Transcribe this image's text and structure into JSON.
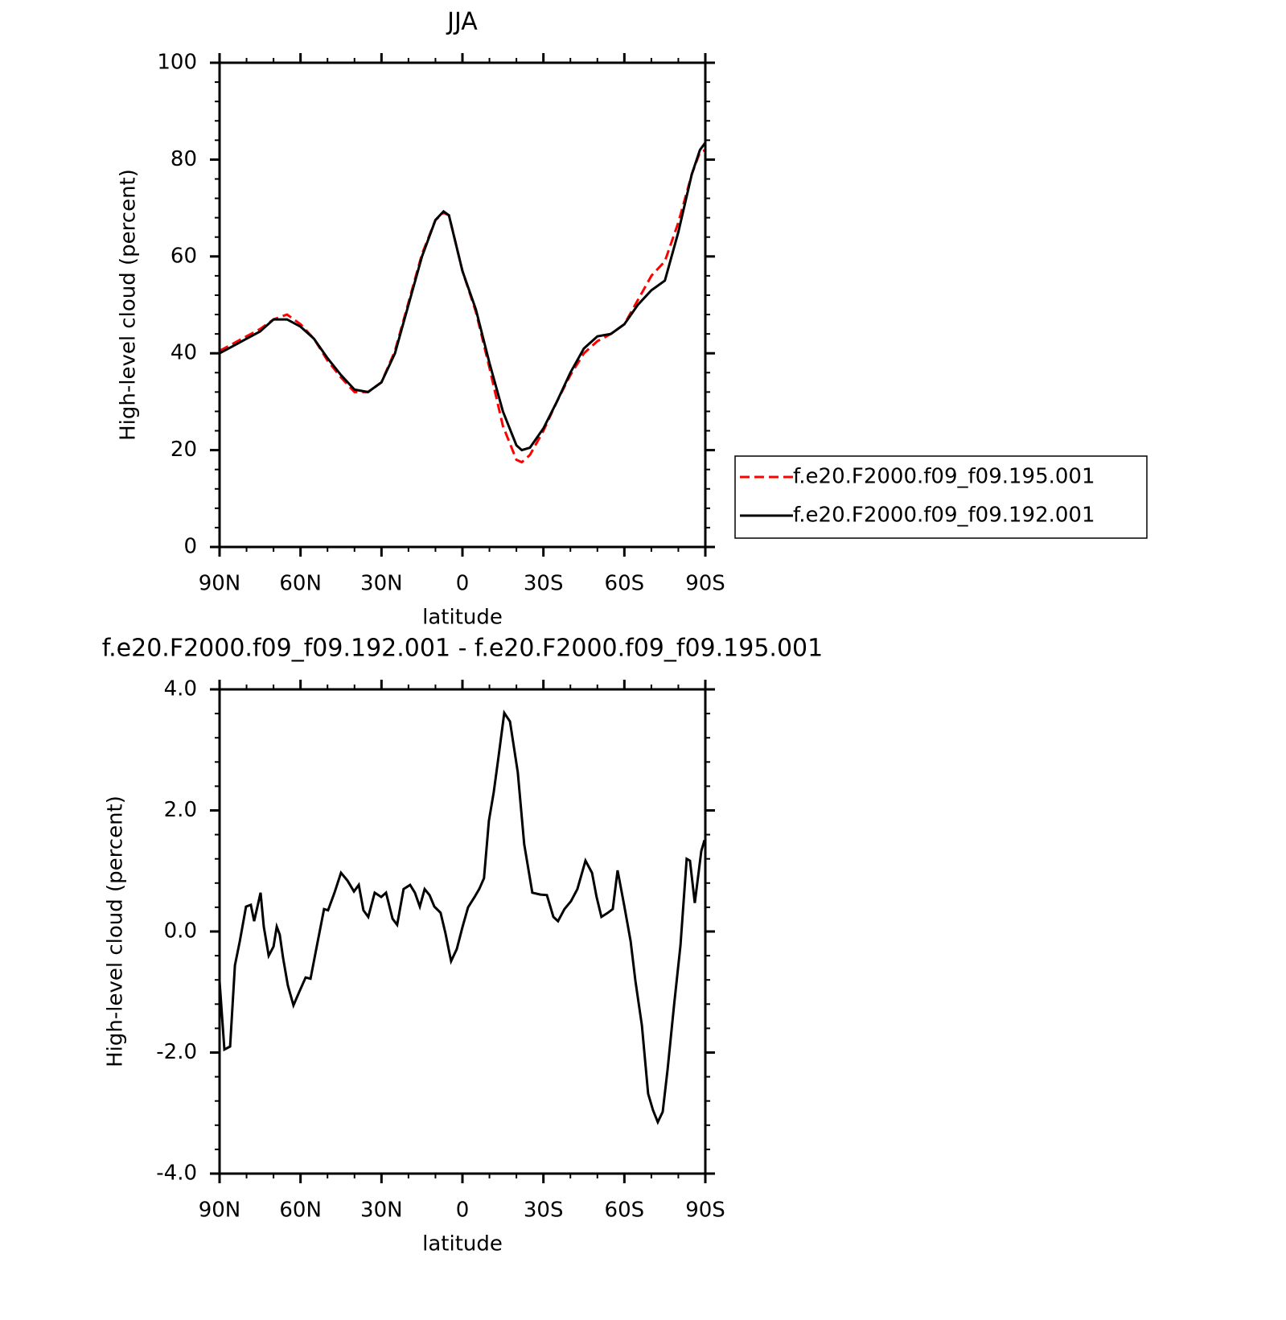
{
  "chart_data": [
    {
      "type": "line",
      "title": "JJA",
      "x_label": "latitude",
      "y_label": "High-level cloud (percent)",
      "xlim": [
        90,
        -90
      ],
      "xticks": [
        {
          "value": 90,
          "label": "90N"
        },
        {
          "value": 60,
          "label": "60N"
        },
        {
          "value": 30,
          "label": "30N"
        },
        0,
        {
          "value": -30,
          "label": "30S"
        },
        {
          "value": -60,
          "label": "60S"
        },
        {
          "value": -90,
          "label": "90S"
        }
      ],
      "minor_xticks": [
        80,
        70,
        50,
        40,
        20,
        10,
        -10,
        -20,
        -40,
        -50,
        -70,
        -80
      ],
      "ylim": [
        0,
        100
      ],
      "yticks": [
        0,
        20,
        40,
        60,
        80,
        100
      ],
      "minor_yticks": [
        4,
        8,
        12,
        16,
        24,
        28,
        32,
        36,
        44,
        48,
        52,
        56,
        64,
        68,
        72,
        76,
        84,
        88,
        92,
        96
      ],
      "legend": "right",
      "x": [
        90,
        85,
        80,
        75,
        70,
        65,
        60,
        55,
        50,
        45,
        40,
        35,
        30,
        25,
        20,
        15,
        10,
        7,
        5,
        0,
        -5,
        -10,
        -15,
        -20,
        -22,
        -25,
        -30,
        -35,
        -40,
        -45,
        -50,
        -55,
        -60,
        -65,
        -70,
        -75,
        -80,
        -85,
        -88,
        -90
      ],
      "series": [
        {
          "name": "f.e20.F2000.f09_f09.195.001",
          "color": "#ff0000",
          "dash": true,
          "values": [
            40.5,
            42,
            43.5,
            45,
            47,
            48,
            46,
            43,
            38.5,
            35,
            32,
            32,
            34,
            40.5,
            50.5,
            60.5,
            67.5,
            69,
            68.5,
            57,
            48.5,
            37,
            25,
            18,
            17.5,
            19,
            24,
            30,
            35.5,
            40,
            42.5,
            44,
            46,
            51,
            56,
            59,
            67,
            77,
            81.5,
            82
          ]
        },
        {
          "name": "f.e20.F2000.f09_f09.192.001",
          "color": "#000000",
          "dash": false,
          "values": [
            40,
            41.5,
            43,
            44.5,
            47,
            47,
            45.5,
            43,
            39,
            35.5,
            32.5,
            32,
            34,
            40,
            50,
            60,
            67.5,
            69.3,
            68.5,
            57,
            49,
            38,
            28,
            21,
            20,
            20.5,
            24.5,
            30,
            36,
            41,
            43.5,
            44,
            46,
            50,
            53,
            55,
            65,
            77,
            82,
            83.5
          ]
        }
      ]
    },
    {
      "type": "line",
      "title": "f.e20.F2000.f09_f09.192.001 - f.e20.F2000.f09_f09.195.001",
      "x_label": "latitude",
      "y_label": "High-level cloud (percent)",
      "xlim": [
        90,
        -90
      ],
      "xticks": [
        {
          "value": 90,
          "label": "90N"
        },
        {
          "value": 60,
          "label": "60N"
        },
        {
          "value": 30,
          "label": "30N"
        },
        0,
        {
          "value": -30,
          "label": "30S"
        },
        {
          "value": -60,
          "label": "60S"
        },
        {
          "value": -90,
          "label": "90S"
        }
      ],
      "minor_xticks": [
        80,
        70,
        50,
        40,
        20,
        10,
        -10,
        -20,
        -40,
        -50,
        -70,
        -80
      ],
      "ylim": [
        -4,
        4
      ],
      "yticks": [
        {
          "value": -4,
          "label": "-4.0"
        },
        {
          "value": -2,
          "label": "-2.0"
        },
        {
          "value": 0,
          "label": "0.0"
        },
        {
          "value": 2,
          "label": "2.0"
        },
        {
          "value": 4,
          "label": "4.0"
        }
      ],
      "minor_yticks": [
        -3.6,
        -3.2,
        -2.8,
        -2.4,
        -1.6,
        -1.2,
        -0.8,
        -0.4,
        0.4,
        0.8,
        1.2,
        1.6,
        2.4,
        2.8,
        3.2,
        3.6
      ],
      "x": [
        90,
        88.2,
        86.1,
        84.3,
        82.5,
        80.2,
        78.4,
        77.2,
        74.8,
        73.6,
        71.8,
        70,
        68.8,
        67.7,
        66.5,
        64.7,
        62.6,
        60.5,
        58.1,
        56.3,
        53.9,
        51.3,
        49.8,
        47.4,
        45,
        42.6,
        40.2,
        38.4,
        36.7,
        34.9,
        32.5,
        30.1,
        28.3,
        25.9,
        24.2,
        21.8,
        19.4,
        17.6,
        15.8,
        14,
        12.2,
        10.4,
        8.1,
        6.3,
        4.2,
        2.1,
        0,
        -2.1,
        -4.5,
        -6.2,
        -8,
        -9.8,
        -11.6,
        -13.4,
        -15.5,
        -17.6,
        -20.5,
        -22.9,
        -25.9,
        -28.9,
        -31.3,
        -33.7,
        -35.4,
        -37.8,
        -40.2,
        -42.6,
        -45.6,
        -48,
        -49.7,
        -51.5,
        -53.9,
        -55.7,
        -57.5,
        -59.9,
        -62.3,
        -64.1,
        -66.5,
        -68.8,
        -70.6,
        -72.4,
        -74.2,
        -76,
        -78.4,
        -80.8,
        -83.1,
        -84.3,
        -86.1,
        -88.5,
        -89.7
      ],
      "series": [
        {
          "name": null,
          "color": "#000000",
          "dash": false,
          "values": [
            -0.82,
            -1.95,
            -1.9,
            -0.56,
            -0.16,
            0.41,
            0.44,
            0.17,
            0.64,
            0.08,
            -0.4,
            -0.25,
            0.08,
            -0.05,
            -0.43,
            -0.89,
            -1.22,
            -1,
            -0.76,
            -0.78,
            -0.23,
            0.37,
            0.35,
            0.64,
            0.97,
            0.84,
            0.66,
            0.77,
            0.35,
            0.24,
            0.64,
            0.57,
            0.64,
            0.21,
            0.11,
            0.7,
            0.77,
            0.64,
            0.41,
            0.7,
            0.6,
            0.41,
            0.31,
            -0.03,
            -0.49,
            -0.29,
            0.07,
            0.4,
            0.57,
            0.7,
            0.88,
            1.83,
            2.3,
            2.9,
            3.61,
            3.47,
            2.63,
            1.44,
            0.64,
            0.61,
            0.6,
            0.24,
            0.17,
            0.37,
            0.5,
            0.7,
            1.17,
            0.97,
            0.57,
            0.24,
            0.31,
            0.37,
            1.01,
            0.44,
            -0.16,
            -0.82,
            -1.55,
            -2.68,
            -2.95,
            -3.15,
            -2.98,
            -2.29,
            -1.22,
            -0.23,
            1.2,
            1.17,
            0.47,
            1.33,
            1.51
          ]
        }
      ]
    }
  ]
}
